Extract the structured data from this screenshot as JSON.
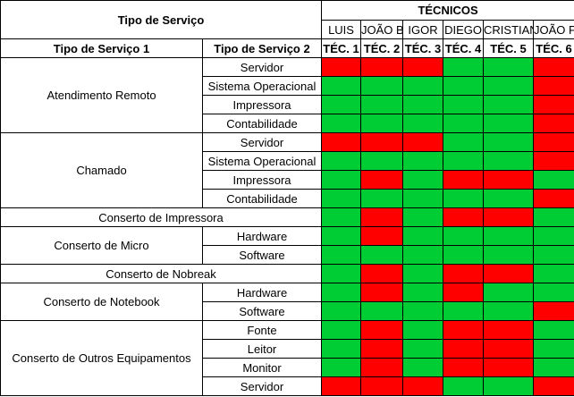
{
  "header": {
    "service_type": "Tipo de Serviço",
    "technicians": "TÉCNICOS",
    "col1": "Tipo de Serviço 1",
    "col2": "Tipo de Serviço 2"
  },
  "techs": [
    {
      "name": "LUIS",
      "code": "TÉC. 1"
    },
    {
      "name": "JOÃO B.",
      "code": "TÉC. 2"
    },
    {
      "name": "IGOR",
      "code": "TÉC. 3"
    },
    {
      "name": "DIEGO",
      "code": "TÉC. 4"
    },
    {
      "name": "CRISTIANO",
      "code": "TÉC. 5"
    },
    {
      "name": "JOÃO P.",
      "code": "TÉC. 6"
    }
  ],
  "colors": {
    "G": "#00cc33",
    "R": "#ff0000"
  },
  "groups": [
    {
      "type1": "Atendimento Remoto",
      "rows": [
        {
          "type2": "Servidor",
          "status": "RRRGGR"
        },
        {
          "type2": "Sistema Operacional",
          "status": "GGGGGR"
        },
        {
          "type2": "Impressora",
          "status": "GGGGGR"
        },
        {
          "type2": "Contabilidade",
          "status": "GGGGGR"
        }
      ]
    },
    {
      "type1": "Chamado",
      "rows": [
        {
          "type2": "Servidor",
          "status": "RRRGGR"
        },
        {
          "type2": "Sistema Operacional",
          "status": "GGGGGR"
        },
        {
          "type2": "Impressora",
          "status": "GRGRRG"
        },
        {
          "type2": "Contabilidade",
          "status": "GGGGGR"
        }
      ]
    },
    {
      "type1": "Conserto de Impressora",
      "rows": [
        {
          "type2": null,
          "status": "GRGRRG"
        }
      ]
    },
    {
      "type1": "Conserto de Micro",
      "rows": [
        {
          "type2": "Hardware",
          "status": "GRGGGG"
        },
        {
          "type2": "Software",
          "status": "GGGGGG"
        }
      ]
    },
    {
      "type1": "Conserto de Nobreak",
      "rows": [
        {
          "type2": null,
          "status": "GRGRRG"
        }
      ]
    },
    {
      "type1": "Conserto de Notebook",
      "rows": [
        {
          "type2": "Hardware",
          "status": "GRGRGG"
        },
        {
          "type2": "Software",
          "status": "GGGGGR"
        }
      ]
    },
    {
      "type1": "Conserto de Outros Equipamentos",
      "rows": [
        {
          "type2": "Fonte",
          "status": "GRGRRG"
        },
        {
          "type2": "Leitor",
          "status": "GRGRRG"
        },
        {
          "type2": "Monitor",
          "status": "GRGRRG"
        },
        {
          "type2": "Servidor",
          "status": "RRRGGR"
        }
      ]
    }
  ]
}
